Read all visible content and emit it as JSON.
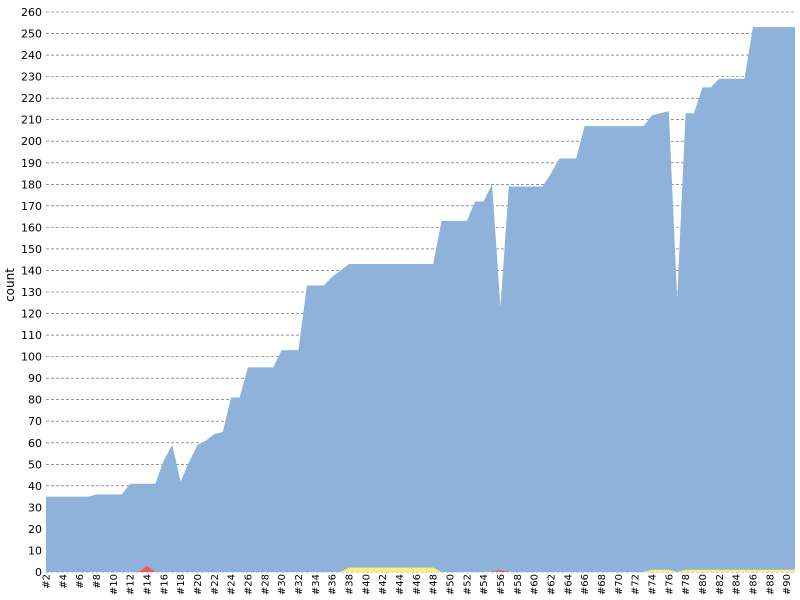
{
  "chart_data": {
    "type": "area",
    "stacked": true,
    "ylabel": "count",
    "xlabel": "",
    "ylim": [
      0,
      260
    ],
    "ytick_step": 10,
    "grid": true,
    "x_label_every": 2,
    "x": [
      "#2",
      "#3",
      "#4",
      "#5",
      "#6",
      "#7",
      "#8",
      "#9",
      "#10",
      "#11",
      "#12",
      "#13",
      "#14",
      "#15",
      "#16",
      "#17",
      "#18",
      "#19",
      "#20",
      "#21",
      "#22",
      "#23",
      "#24",
      "#25",
      "#26",
      "#27",
      "#28",
      "#29",
      "#30",
      "#31",
      "#32",
      "#33",
      "#34",
      "#35",
      "#36",
      "#37",
      "#38",
      "#39",
      "#40",
      "#41",
      "#42",
      "#43",
      "#44",
      "#45",
      "#46",
      "#47",
      "#48",
      "#49",
      "#50",
      "#51",
      "#52",
      "#53",
      "#54",
      "#55",
      "#56",
      "#57",
      "#58",
      "#59",
      "#60",
      "#61",
      "#62",
      "#63",
      "#64",
      "#65",
      "#66",
      "#67",
      "#68",
      "#69",
      "#70",
      "#71",
      "#72",
      "#73",
      "#74",
      "#75",
      "#76",
      "#77",
      "#78",
      "#79",
      "#80",
      "#81",
      "#82",
      "#83",
      "#84",
      "#85",
      "#86",
      "#87",
      "#88",
      "#89",
      "#90",
      "#91"
    ],
    "series": [
      {
        "color": "#fdf075",
        "values": [
          0,
          0,
          0,
          0,
          0,
          0,
          0,
          0,
          0,
          0,
          0,
          0,
          0,
          0,
          0,
          0,
          0,
          0,
          0,
          0,
          0,
          0,
          0,
          0,
          0,
          0,
          0,
          0,
          0,
          0,
          0,
          0,
          0,
          0,
          0,
          0,
          2,
          2,
          2,
          2,
          2,
          2,
          2,
          2,
          2,
          2,
          2,
          0,
          0,
          0,
          0,
          0,
          0,
          0,
          0,
          0,
          0,
          0,
          0,
          0,
          0,
          0,
          0,
          0,
          0,
          0,
          0,
          0,
          0,
          0,
          0,
          0,
          1,
          1,
          1,
          0,
          1,
          1,
          1,
          1,
          1,
          1,
          1,
          1,
          1,
          1,
          1,
          1,
          1,
          1
        ]
      },
      {
        "color": "#ef5959",
        "values": [
          0,
          0,
          0,
          0,
          0,
          0,
          0,
          0,
          0,
          0,
          0,
          0,
          3,
          0,
          0,
          0,
          0,
          0,
          0,
          0,
          0,
          0,
          0,
          0,
          0,
          0,
          0,
          0,
          0,
          0,
          0,
          0,
          0,
          0,
          0,
          0,
          0,
          0,
          0,
          0,
          0,
          0,
          0,
          0,
          0,
          0,
          0,
          0,
          0,
          0,
          0,
          0,
          0,
          0,
          1,
          0,
          0,
          0,
          0,
          0,
          0,
          0,
          0,
          0,
          0,
          0,
          0,
          0,
          0,
          0,
          0,
          0,
          0,
          0,
          0,
          0,
          0,
          0,
          0,
          0,
          0,
          0,
          0,
          0,
          0,
          0,
          0,
          0,
          0,
          0
        ]
      },
      {
        "color": "#8fb2da",
        "values": [
          35,
          35,
          35,
          35,
          35,
          35,
          36,
          36,
          36,
          36,
          41,
          41,
          38,
          41,
          52,
          59,
          42,
          51,
          59,
          61,
          64,
          65,
          81,
          81,
          95,
          95,
          95,
          95,
          103,
          103,
          103,
          133,
          133,
          133,
          137,
          140,
          141,
          141,
          141,
          141,
          141,
          141,
          141,
          141,
          141,
          141,
          141,
          163,
          163,
          163,
          163,
          172,
          172,
          180,
          122,
          179,
          179,
          179,
          179,
          179,
          185,
          192,
          192,
          192,
          207,
          207,
          207,
          207,
          207,
          207,
          207,
          207,
          211,
          212,
          213,
          127,
          212,
          212,
          224,
          224,
          228,
          228,
          228,
          228,
          252,
          252,
          252,
          252,
          252,
          252
        ]
      }
    ]
  }
}
